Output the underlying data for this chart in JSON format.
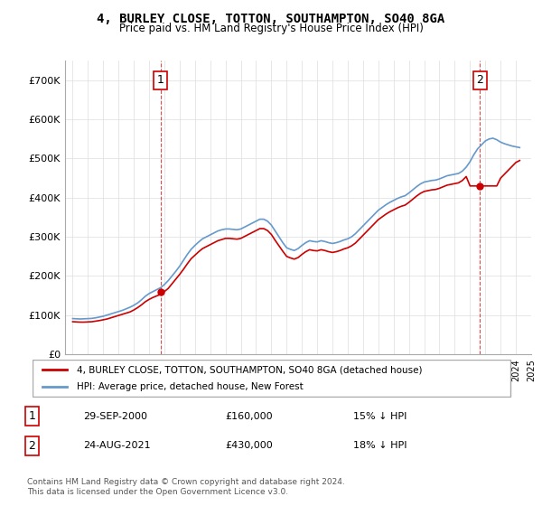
{
  "title": "4, BURLEY CLOSE, TOTTON, SOUTHAMPTON, SO40 8GA",
  "subtitle": "Price paid vs. HM Land Registry's House Price Index (HPI)",
  "legend_line1": "4, BURLEY CLOSE, TOTTON, SOUTHAMPTON, SO40 8GA (detached house)",
  "legend_line2": "HPI: Average price, detached house, New Forest",
  "annotation1_label": "1",
  "annotation1_date": "29-SEP-2000",
  "annotation1_price": "£160,000",
  "annotation1_hpi": "15% ↓ HPI",
  "annotation1_year": 2000.75,
  "annotation1_value": 160000,
  "annotation2_label": "2",
  "annotation2_date": "24-AUG-2021",
  "annotation2_price": "£430,000",
  "annotation2_hpi": "18% ↓ HPI",
  "annotation2_year": 2021.65,
  "annotation2_value": 430000,
  "footer": "Contains HM Land Registry data © Crown copyright and database right 2024.\nThis data is licensed under the Open Government Licence v3.0.",
  "red_color": "#cc0000",
  "blue_color": "#6699cc",
  "background_color": "#ffffff",
  "grid_color": "#dddddd",
  "ylim": [
    0,
    750000
  ],
  "yticks": [
    0,
    100000,
    200000,
    300000,
    400000,
    500000,
    600000,
    700000
  ],
  "ytick_labels": [
    "£0",
    "£100K",
    "£200K",
    "£300K",
    "£400K",
    "£500K",
    "£600K",
    "£700K"
  ],
  "hpi_years": [
    1995.0,
    1995.25,
    1995.5,
    1995.75,
    1996.0,
    1996.25,
    1996.5,
    1996.75,
    1997.0,
    1997.25,
    1997.5,
    1997.75,
    1998.0,
    1998.25,
    1998.5,
    1998.75,
    1999.0,
    1999.25,
    1999.5,
    1999.75,
    2000.0,
    2000.25,
    2000.5,
    2000.75,
    2001.0,
    2001.25,
    2001.5,
    2001.75,
    2002.0,
    2002.25,
    2002.5,
    2002.75,
    2003.0,
    2003.25,
    2003.5,
    2003.75,
    2004.0,
    2004.25,
    2004.5,
    2004.75,
    2005.0,
    2005.25,
    2005.5,
    2005.75,
    2006.0,
    2006.25,
    2006.5,
    2006.75,
    2007.0,
    2007.25,
    2007.5,
    2007.75,
    2008.0,
    2008.25,
    2008.5,
    2008.75,
    2009.0,
    2009.25,
    2009.5,
    2009.75,
    2010.0,
    2010.25,
    2010.5,
    2010.75,
    2011.0,
    2011.25,
    2011.5,
    2011.75,
    2012.0,
    2012.25,
    2012.5,
    2012.75,
    2013.0,
    2013.25,
    2013.5,
    2013.75,
    2014.0,
    2014.25,
    2014.5,
    2014.75,
    2015.0,
    2015.25,
    2015.5,
    2015.75,
    2016.0,
    2016.25,
    2016.5,
    2016.75,
    2017.0,
    2017.25,
    2017.5,
    2017.75,
    2018.0,
    2018.25,
    2018.5,
    2018.75,
    2019.0,
    2019.25,
    2019.5,
    2019.75,
    2020.0,
    2020.25,
    2020.5,
    2020.75,
    2021.0,
    2021.25,
    2021.5,
    2021.75,
    2022.0,
    2022.25,
    2022.5,
    2022.75,
    2023.0,
    2023.25,
    2023.5,
    2023.75,
    2024.0,
    2024.25
  ],
  "hpi_values": [
    91000,
    90500,
    90000,
    90500,
    91000,
    91500,
    93000,
    95000,
    97000,
    100000,
    103000,
    106000,
    109000,
    112000,
    116000,
    120000,
    125000,
    131000,
    139000,
    148000,
    155000,
    160000,
    165000,
    170000,
    178000,
    188000,
    200000,
    212000,
    225000,
    240000,
    255000,
    268000,
    278000,
    287000,
    295000,
    300000,
    305000,
    310000,
    315000,
    318000,
    320000,
    320000,
    319000,
    318000,
    320000,
    325000,
    330000,
    335000,
    340000,
    345000,
    345000,
    340000,
    330000,
    315000,
    300000,
    285000,
    272000,
    268000,
    265000,
    270000,
    278000,
    285000,
    290000,
    288000,
    287000,
    290000,
    288000,
    285000,
    283000,
    285000,
    288000,
    292000,
    295000,
    300000,
    308000,
    318000,
    328000,
    338000,
    348000,
    358000,
    368000,
    375000,
    382000,
    388000,
    393000,
    398000,
    402000,
    405000,
    412000,
    420000,
    428000,
    435000,
    440000,
    442000,
    444000,
    445000,
    448000,
    452000,
    456000,
    458000,
    460000,
    462000,
    468000,
    478000,
    492000,
    510000,
    525000,
    535000,
    545000,
    550000,
    552000,
    548000,
    542000,
    538000,
    535000,
    532000,
    530000,
    528000
  ],
  "red_years": [
    1995.0,
    1995.25,
    1995.5,
    1995.75,
    1996.0,
    1996.25,
    1996.5,
    1996.75,
    1997.0,
    1997.25,
    1997.5,
    1997.75,
    1998.0,
    1998.25,
    1998.5,
    1998.75,
    1999.0,
    1999.25,
    1999.5,
    1999.75,
    2000.0,
    2000.25,
    2000.5,
    2000.75,
    2001.0,
    2001.25,
    2001.5,
    2001.75,
    2002.0,
    2002.25,
    2002.5,
    2002.75,
    2003.0,
    2003.25,
    2003.5,
    2003.75,
    2004.0,
    2004.25,
    2004.5,
    2004.75,
    2005.0,
    2005.25,
    2005.5,
    2005.75,
    2006.0,
    2006.25,
    2006.5,
    2006.75,
    2007.0,
    2007.25,
    2007.5,
    2007.75,
    2008.0,
    2008.25,
    2008.5,
    2008.75,
    2009.0,
    2009.25,
    2009.5,
    2009.75,
    2010.0,
    2010.25,
    2010.5,
    2010.75,
    2011.0,
    2011.25,
    2011.5,
    2011.75,
    2012.0,
    2012.25,
    2012.5,
    2012.75,
    2013.0,
    2013.25,
    2013.5,
    2013.75,
    2014.0,
    2014.25,
    2014.5,
    2014.75,
    2015.0,
    2015.25,
    2015.5,
    2015.75,
    2016.0,
    2016.25,
    2016.5,
    2016.75,
    2017.0,
    2017.25,
    2017.5,
    2017.75,
    2018.0,
    2018.25,
    2018.5,
    2018.75,
    2019.0,
    2019.25,
    2019.5,
    2019.75,
    2020.0,
    2020.25,
    2020.5,
    2020.75,
    2021.0,
    2021.25,
    2021.5,
    2021.75,
    2022.0,
    2022.25,
    2022.5,
    2022.75,
    2023.0,
    2023.25,
    2023.5,
    2023.75,
    2024.0,
    2024.25
  ],
  "red_values": [
    83000,
    82500,
    82000,
    82000,
    82500,
    83000,
    84500,
    86000,
    88000,
    90000,
    93000,
    96000,
    99000,
    102000,
    105000,
    108000,
    113000,
    119000,
    126000,
    134000,
    140000,
    145000,
    149000,
    153000,
    160000,
    168000,
    180000,
    192000,
    204000,
    217000,
    231000,
    244000,
    253000,
    262000,
    270000,
    275000,
    280000,
    285000,
    290000,
    293000,
    296000,
    296000,
    295000,
    294000,
    296000,
    301000,
    306000,
    311000,
    316000,
    321000,
    321000,
    316000,
    306000,
    291000,
    277000,
    263000,
    250000,
    246000,
    243000,
    247000,
    255000,
    262000,
    267000,
    265000,
    264000,
    267000,
    265000,
    262000,
    260000,
    262000,
    265000,
    269000,
    272000,
    277000,
    284000,
    294000,
    304000,
    314000,
    324000,
    334000,
    344000,
    351000,
    358000,
    364000,
    369000,
    374000,
    378000,
    381000,
    388000,
    396000,
    404000,
    411000,
    416000,
    418000,
    420000,
    421000,
    424000,
    428000,
    432000,
    434000,
    436000,
    438000,
    444000,
    454000,
    430000,
    430000,
    430000,
    430000,
    430000,
    430000,
    430000,
    430000,
    450000,
    460000,
    470000,
    480000,
    490000,
    495000
  ]
}
